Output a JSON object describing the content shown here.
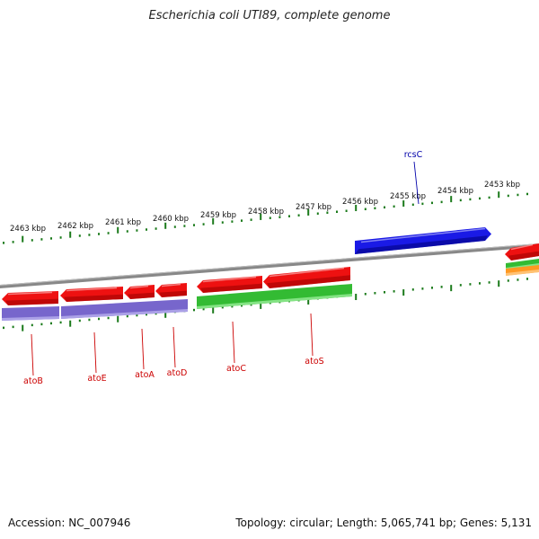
{
  "title": "Escherichia coli UTI89, complete genome",
  "footer": {
    "accession": "Accession: NC_007946",
    "summary": "Topology: circular; Length: 5,065,741 bp; Genes: 5,131"
  },
  "colors": {
    "forward_gene": "#ee1111",
    "reverse_gene": "#1a1ae6",
    "cds_purple": "#7766cc",
    "cds_green": "#33bb33",
    "cds_orange": "#ff9922",
    "backbone": "#888888",
    "ruler": "#1a7a1a",
    "label_red": "#cc0000",
    "label_blue": "#0000aa"
  },
  "ruler_labels": [
    {
      "text": "2463 kbp"
    },
    {
      "text": "2462 kbp"
    },
    {
      "text": "2461 kbp"
    },
    {
      "text": "2460 kbp"
    },
    {
      "text": "2459 kbp"
    },
    {
      "text": "2458 kbp"
    },
    {
      "text": "2457 kbp"
    },
    {
      "text": "2456 kbp"
    },
    {
      "text": "2455 kbp"
    },
    {
      "text": "2454 kbp"
    },
    {
      "text": "2453 kbp"
    }
  ],
  "gene_labels": [
    {
      "name": "atoB",
      "strand": "forward"
    },
    {
      "name": "atoE",
      "strand": "forward"
    },
    {
      "name": "atoA",
      "strand": "forward"
    },
    {
      "name": "atoD",
      "strand": "forward"
    },
    {
      "name": "atoC",
      "strand": "forward"
    },
    {
      "name": "atoS",
      "strand": "forward"
    },
    {
      "name": "rcsC",
      "strand": "reverse"
    }
  ]
}
